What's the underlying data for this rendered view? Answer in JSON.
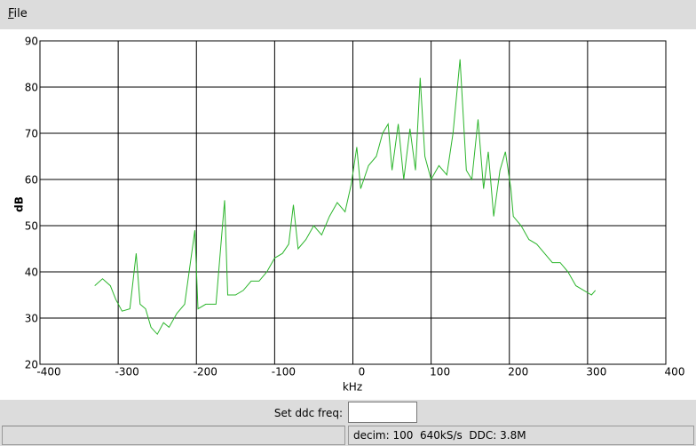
{
  "menu": {
    "items": [
      "File"
    ]
  },
  "chart_data": {
    "type": "line",
    "x": [
      -330,
      -320,
      -310,
      -303,
      -295,
      -285,
      -277,
      -272,
      -265,
      -258,
      -250,
      -242,
      -235,
      -225,
      -215,
      -202,
      -198,
      -188,
      -175,
      -164,
      -160,
      -150,
      -140,
      -130,
      -120,
      -110,
      -100,
      -90,
      -82,
      -76,
      -70,
      -60,
      -50,
      -40,
      -30,
      -20,
      -10,
      -2,
      5,
      10,
      20,
      30,
      38,
      45,
      50,
      58,
      65,
      73,
      80,
      86,
      92,
      100,
      110,
      120,
      128,
      137,
      145,
      152,
      160,
      167,
      173,
      180,
      188,
      195,
      202,
      205,
      215,
      225,
      235,
      245,
      255,
      265,
      275,
      285,
      295,
      305,
      310
    ],
    "series": [
      {
        "color": "#2cb52c",
        "values": [
          37,
          38.5,
          37,
          34,
          31.5,
          32,
          44,
          33,
          32,
          28,
          26.5,
          29,
          28,
          31,
          33,
          49,
          32,
          33,
          33,
          55.5,
          35,
          35,
          36,
          38,
          38,
          40,
          43,
          44,
          46,
          54.5,
          45,
          47,
          50,
          48,
          52,
          55,
          53,
          59,
          67,
          58,
          63,
          65,
          70,
          72,
          62,
          72,
          60,
          71,
          62,
          82,
          65,
          60,
          63,
          61,
          70,
          86,
          62,
          60,
          73,
          58,
          66,
          52,
          62,
          66,
          58,
          52,
          50,
          47,
          46,
          44,
          42,
          42,
          40,
          37,
          36,
          35,
          36
        ]
      }
    ],
    "xlabel": "kHz",
    "ylabel": "dB",
    "xlim": [
      -400,
      400
    ],
    "xticks": [
      -400,
      -300,
      -200,
      -100,
      0,
      100,
      200,
      300,
      400
    ],
    "ylim": [
      20,
      90
    ],
    "yticks": [
      20,
      30,
      40,
      50,
      60,
      70,
      80,
      90
    ],
    "grid": true
  },
  "controls": {
    "ddc_label": "Set ddc freq:"
  },
  "status": {
    "text": "decim: 100  640kS/s  DDC: 3.8M"
  }
}
